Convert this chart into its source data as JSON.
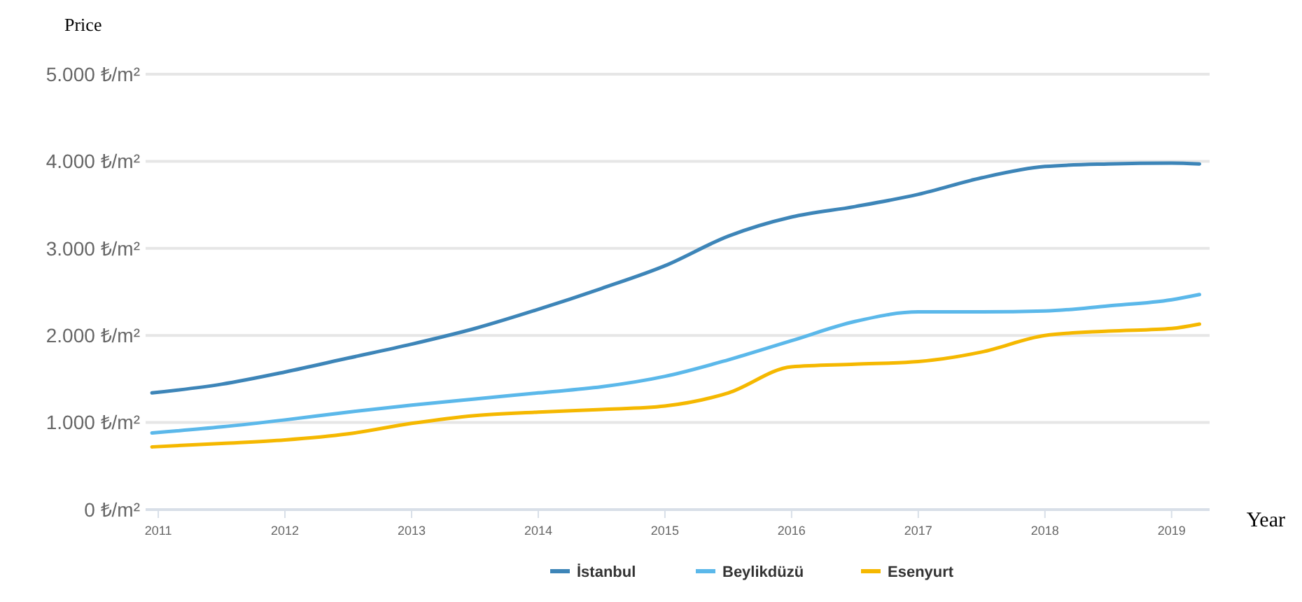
{
  "chart_data": {
    "type": "line",
    "ylabel": "Price",
    "xlabel": "Year",
    "x": [
      2010.95,
      2011.5,
      2012,
      2012.5,
      2013,
      2013.5,
      2014,
      2014.5,
      2015,
      2015.5,
      2016,
      2016.5,
      2017,
      2017.5,
      2018,
      2018.5,
      2019,
      2019.22
    ],
    "series": [
      {
        "name": "İstanbul",
        "color": "#3d85b8",
        "values": [
          1340,
          1440,
          1580,
          1740,
          1900,
          2080,
          2300,
          2540,
          2800,
          3140,
          3360,
          3480,
          3620,
          3810,
          3940,
          3970,
          3980,
          3970
        ]
      },
      {
        "name": "Beylikdüzü",
        "color": "#5bb8ea",
        "values": [
          880,
          950,
          1030,
          1120,
          1200,
          1270,
          1340,
          1410,
          1530,
          1720,
          1940,
          2160,
          2270,
          2270,
          2280,
          2340,
          2410,
          2470
        ]
      },
      {
        "name": "Esenyurt",
        "color": "#f5b800",
        "values": [
          720,
          760,
          800,
          870,
          990,
          1080,
          1120,
          1150,
          1190,
          1340,
          1640,
          1670,
          1700,
          1810,
          2000,
          2050,
          2080,
          2130
        ]
      }
    ],
    "xlim": [
      2010.9,
      2019.3
    ],
    "xticks": [
      2011,
      2012,
      2013,
      2014,
      2015,
      2016,
      2017,
      2018,
      2019
    ],
    "ylim": [
      0,
      5000
    ],
    "yticks": [
      {
        "value": 0,
        "label": "0 ₺/m²"
      },
      {
        "value": 1000,
        "label": "1.000 ₺/m²"
      },
      {
        "value": 2000,
        "label": "2.000 ₺/m²"
      },
      {
        "value": 3000,
        "label": "3.000 ₺/m²"
      },
      {
        "value": 4000,
        "label": "4.000 ₺/m²"
      },
      {
        "value": 5000,
        "label": "5.000 ₺/m²"
      }
    ],
    "grid": "y",
    "legend": "bottom",
    "marker": "none",
    "line_style": "solid"
  }
}
